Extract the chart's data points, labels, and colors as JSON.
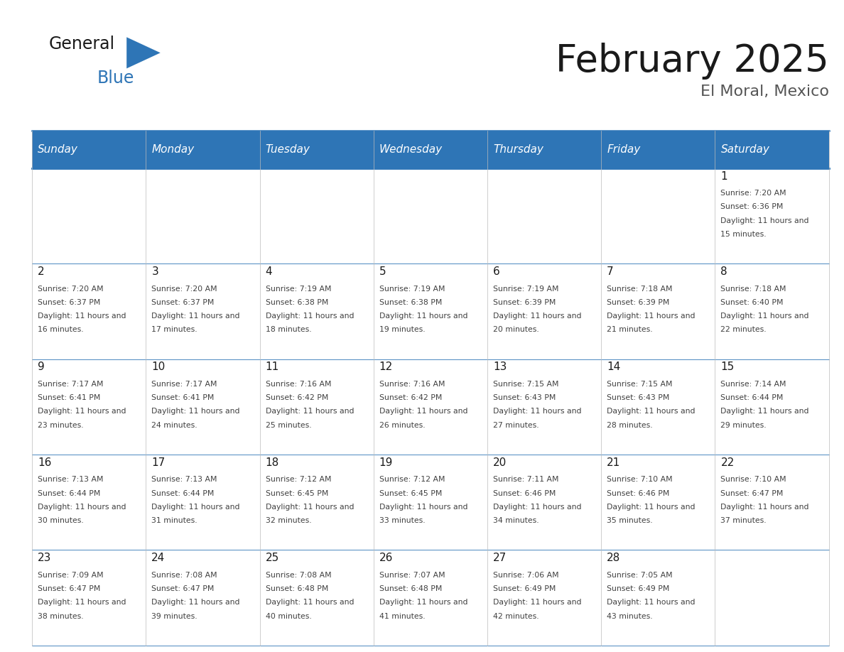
{
  "title": "February 2025",
  "subtitle": "El Moral, Mexico",
  "header_bg_color": "#2E75B6",
  "header_text_color": "#FFFFFF",
  "day_names": [
    "Sunday",
    "Monday",
    "Tuesday",
    "Wednesday",
    "Thursday",
    "Friday",
    "Saturday"
  ],
  "title_color": "#1a1a1a",
  "subtitle_color": "#555555",
  "cell_bg_white": "#FFFFFF",
  "cell_bg_gray": "#F0F0F0",
  "border_color": "#2E75B6",
  "day_num_color": "#1a1a1a",
  "info_text_color": "#404040",
  "logo_triangle_color": "#2E75B6",
  "calendar_data": [
    [
      null,
      null,
      null,
      null,
      null,
      null,
      {
        "day": 1,
        "sunrise": "7:20 AM",
        "sunset": "6:36 PM",
        "daylight": "11 hours and 15 minutes."
      }
    ],
    [
      {
        "day": 2,
        "sunrise": "7:20 AM",
        "sunset": "6:37 PM",
        "daylight": "11 hours and 16 minutes."
      },
      {
        "day": 3,
        "sunrise": "7:20 AM",
        "sunset": "6:37 PM",
        "daylight": "11 hours and 17 minutes."
      },
      {
        "day": 4,
        "sunrise": "7:19 AM",
        "sunset": "6:38 PM",
        "daylight": "11 hours and 18 minutes."
      },
      {
        "day": 5,
        "sunrise": "7:19 AM",
        "sunset": "6:38 PM",
        "daylight": "11 hours and 19 minutes."
      },
      {
        "day": 6,
        "sunrise": "7:19 AM",
        "sunset": "6:39 PM",
        "daylight": "11 hours and 20 minutes."
      },
      {
        "day": 7,
        "sunrise": "7:18 AM",
        "sunset": "6:39 PM",
        "daylight": "11 hours and 21 minutes."
      },
      {
        "day": 8,
        "sunrise": "7:18 AM",
        "sunset": "6:40 PM",
        "daylight": "11 hours and 22 minutes."
      }
    ],
    [
      {
        "day": 9,
        "sunrise": "7:17 AM",
        "sunset": "6:41 PM",
        "daylight": "11 hours and 23 minutes."
      },
      {
        "day": 10,
        "sunrise": "7:17 AM",
        "sunset": "6:41 PM",
        "daylight": "11 hours and 24 minutes."
      },
      {
        "day": 11,
        "sunrise": "7:16 AM",
        "sunset": "6:42 PM",
        "daylight": "11 hours and 25 minutes."
      },
      {
        "day": 12,
        "sunrise": "7:16 AM",
        "sunset": "6:42 PM",
        "daylight": "11 hours and 26 minutes."
      },
      {
        "day": 13,
        "sunrise": "7:15 AM",
        "sunset": "6:43 PM",
        "daylight": "11 hours and 27 minutes."
      },
      {
        "day": 14,
        "sunrise": "7:15 AM",
        "sunset": "6:43 PM",
        "daylight": "11 hours and 28 minutes."
      },
      {
        "day": 15,
        "sunrise": "7:14 AM",
        "sunset": "6:44 PM",
        "daylight": "11 hours and 29 minutes."
      }
    ],
    [
      {
        "day": 16,
        "sunrise": "7:13 AM",
        "sunset": "6:44 PM",
        "daylight": "11 hours and 30 minutes."
      },
      {
        "day": 17,
        "sunrise": "7:13 AM",
        "sunset": "6:44 PM",
        "daylight": "11 hours and 31 minutes."
      },
      {
        "day": 18,
        "sunrise": "7:12 AM",
        "sunset": "6:45 PM",
        "daylight": "11 hours and 32 minutes."
      },
      {
        "day": 19,
        "sunrise": "7:12 AM",
        "sunset": "6:45 PM",
        "daylight": "11 hours and 33 minutes."
      },
      {
        "day": 20,
        "sunrise": "7:11 AM",
        "sunset": "6:46 PM",
        "daylight": "11 hours and 34 minutes."
      },
      {
        "day": 21,
        "sunrise": "7:10 AM",
        "sunset": "6:46 PM",
        "daylight": "11 hours and 35 minutes."
      },
      {
        "day": 22,
        "sunrise": "7:10 AM",
        "sunset": "6:47 PM",
        "daylight": "11 hours and 37 minutes."
      }
    ],
    [
      {
        "day": 23,
        "sunrise": "7:09 AM",
        "sunset": "6:47 PM",
        "daylight": "11 hours and 38 minutes."
      },
      {
        "day": 24,
        "sunrise": "7:08 AM",
        "sunset": "6:47 PM",
        "daylight": "11 hours and 39 minutes."
      },
      {
        "day": 25,
        "sunrise": "7:08 AM",
        "sunset": "6:48 PM",
        "daylight": "11 hours and 40 minutes."
      },
      {
        "day": 26,
        "sunrise": "7:07 AM",
        "sunset": "6:48 PM",
        "daylight": "11 hours and 41 minutes."
      },
      {
        "day": 27,
        "sunrise": "7:06 AM",
        "sunset": "6:49 PM",
        "daylight": "11 hours and 42 minutes."
      },
      {
        "day": 28,
        "sunrise": "7:05 AM",
        "sunset": "6:49 PM",
        "daylight": "11 hours and 43 minutes."
      },
      null
    ]
  ]
}
